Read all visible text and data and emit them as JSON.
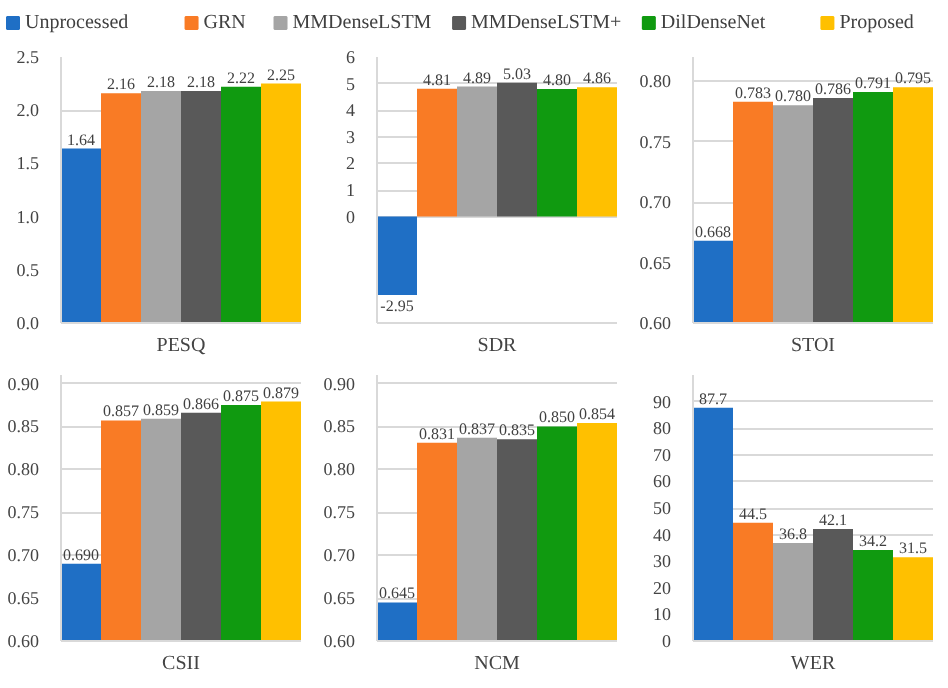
{
  "chart_data": [
    {
      "type": "bar",
      "stacked": true,
      "legend": "top",
      "grid": "y",
      "xlabel": "PESQ",
      "categories": [
        null,
        null,
        null,
        null,
        null,
        null
      ],
      "ylim": [
        0,
        2.5
      ],
      "yticks": [
        {
          "value": 0,
          "label": "0.0"
        },
        {
          "value": 0.5,
          "label": "0.5"
        },
        {
          "value": 1,
          "label": "1.0"
        },
        {
          "value": 1.5,
          "label": "1.5"
        },
        {
          "value": 2,
          "label": "2.0"
        },
        {
          "value": 2.5,
          "label": "2.5"
        }
      ],
      "series": [
        {
          "name": "Unprocessed",
          "color": "#1f6fc5",
          "values": [
            1.64,
            null,
            null,
            null,
            null,
            null
          ],
          "value_labels": [
            "1.64",
            null,
            null,
            null,
            null,
            null
          ]
        },
        {
          "name": "GRN",
          "color": "#f97b25",
          "values": [
            null,
            2.16,
            null,
            null,
            null,
            null
          ],
          "value_labels": [
            null,
            "2.16",
            null,
            null,
            null,
            null
          ]
        },
        {
          "name": "MMDenseLSTM",
          "color": "#a5a5a5",
          "values": [
            null,
            null,
            2.18,
            null,
            null,
            null
          ],
          "value_labels": [
            null,
            null,
            "2.18",
            null,
            null,
            null
          ]
        },
        {
          "name": "MMDenseLSTM+",
          "color": "#595959",
          "values": [
            null,
            null,
            null,
            2.18,
            null,
            null
          ],
          "value_labels": [
            null,
            null,
            null,
            "2.18",
            null,
            null
          ]
        },
        {
          "name": "DilDenseNet",
          "color": "#109a10",
          "values": [
            null,
            null,
            null,
            null,
            2.22,
            null
          ],
          "value_labels": [
            null,
            null,
            null,
            null,
            "2.22",
            null
          ]
        },
        {
          "name": "Proposed",
          "color": "#ffc000",
          "values": [
            null,
            null,
            null,
            null,
            null,
            2.25
          ],
          "value_labels": [
            null,
            null,
            null,
            null,
            null,
            "2.25"
          ]
        }
      ]
    },
    {
      "type": "bar",
      "stacked": true,
      "grid": "y",
      "xlabel": "SDR",
      "categories": [
        null,
        null,
        null,
        null,
        null,
        null
      ],
      "ylim": [
        -4,
        6
      ],
      "yticks": [
        0,
        1,
        2,
        3,
        4,
        5,
        6
      ],
      "series": [
        {
          "color": "#1f6fc5",
          "values": [
            -2.95,
            null,
            null,
            null,
            null,
            null
          ],
          "value_labels": [
            "-2.95",
            null,
            null,
            null,
            null,
            null
          ]
        },
        {
          "color": "#f97b25",
          "values": [
            null,
            4.81,
            null,
            null,
            null,
            null
          ],
          "value_labels": [
            null,
            "4.81",
            null,
            null,
            null,
            null
          ]
        },
        {
          "color": "#a5a5a5",
          "values": [
            null,
            null,
            4.89,
            null,
            null,
            null
          ],
          "value_labels": [
            null,
            null,
            "4.89",
            null,
            null,
            null
          ]
        },
        {
          "color": "#595959",
          "values": [
            null,
            null,
            null,
            5.03,
            null,
            null
          ],
          "value_labels": [
            null,
            null,
            null,
            "5.03",
            null,
            null
          ]
        },
        {
          "color": "#109a10",
          "values": [
            null,
            null,
            null,
            null,
            4.8,
            null
          ],
          "value_labels": [
            null,
            null,
            null,
            null,
            "4.80",
            null
          ]
        },
        {
          "color": "#ffc000",
          "values": [
            null,
            null,
            null,
            null,
            null,
            4.86
          ],
          "value_labels": [
            null,
            null,
            null,
            null,
            null,
            "4.86"
          ]
        }
      ]
    },
    {
      "type": "bar",
      "stacked": true,
      "grid": "y",
      "xlabel": "STOI",
      "categories": [
        null,
        null,
        null,
        null,
        null,
        null
      ],
      "ylim": [
        0.6,
        0.82
      ],
      "yticks": [
        {
          "value": 0.6,
          "label": "0.60"
        },
        {
          "value": 0.65,
          "label": "0.65"
        },
        {
          "value": 0.7,
          "label": "0.70"
        },
        {
          "value": 0.75,
          "label": "0.75"
        },
        {
          "value": 0.8,
          "label": "0.80"
        }
      ],
      "series": [
        {
          "color": "#1f6fc5",
          "values": [
            0.668,
            null,
            null,
            null,
            null,
            null
          ],
          "value_labels": [
            "0.668",
            null,
            null,
            null,
            null,
            null
          ]
        },
        {
          "color": "#f97b25",
          "values": [
            null,
            0.783,
            null,
            null,
            null,
            null
          ],
          "value_labels": [
            null,
            "0.783",
            null,
            null,
            null,
            null
          ]
        },
        {
          "color": "#a5a5a5",
          "values": [
            null,
            null,
            0.78,
            null,
            null,
            null
          ],
          "value_labels": [
            null,
            null,
            "0.780",
            null,
            null,
            null
          ]
        },
        {
          "color": "#595959",
          "values": [
            null,
            null,
            null,
            0.786,
            null,
            null
          ],
          "value_labels": [
            null,
            null,
            null,
            "0.786",
            null,
            null
          ]
        },
        {
          "color": "#109a10",
          "values": [
            null,
            null,
            null,
            null,
            0.791,
            null
          ],
          "value_labels": [
            null,
            null,
            null,
            null,
            "0.791",
            null
          ]
        },
        {
          "color": "#ffc000",
          "values": [
            null,
            null,
            null,
            null,
            null,
            0.795
          ],
          "value_labels": [
            null,
            null,
            null,
            null,
            null,
            "0.795"
          ]
        }
      ]
    },
    {
      "type": "bar",
      "stacked": true,
      "grid": "y",
      "xlabel": "CSII",
      "categories": [
        null,
        null,
        null,
        null,
        null,
        null
      ],
      "ylim": [
        0.6,
        0.91
      ],
      "yticks": [
        {
          "value": 0.6,
          "label": "0.60"
        },
        {
          "value": 0.65,
          "label": "0.65"
        },
        {
          "value": 0.7,
          "label": "0.70"
        },
        {
          "value": 0.75,
          "label": "0.75"
        },
        {
          "value": 0.8,
          "label": "0.80"
        },
        {
          "value": 0.85,
          "label": "0.85"
        },
        {
          "value": 0.9,
          "label": "0.90"
        }
      ],
      "series": [
        {
          "color": "#1f6fc5",
          "values": [
            0.69,
            null,
            null,
            null,
            null,
            null
          ],
          "value_labels": [
            "0.690",
            null,
            null,
            null,
            null,
            null
          ]
        },
        {
          "color": "#f97b25",
          "values": [
            null,
            0.857,
            null,
            null,
            null,
            null
          ],
          "value_labels": [
            null,
            "0.857",
            null,
            null,
            null,
            null
          ]
        },
        {
          "color": "#a5a5a5",
          "values": [
            null,
            null,
            0.859,
            null,
            null,
            null
          ],
          "value_labels": [
            null,
            null,
            "0.859",
            null,
            null,
            null
          ]
        },
        {
          "color": "#595959",
          "values": [
            null,
            null,
            null,
            0.866,
            null,
            null
          ],
          "value_labels": [
            null,
            null,
            null,
            "0.866",
            null,
            null
          ]
        },
        {
          "color": "#109a10",
          "values": [
            null,
            null,
            null,
            null,
            0.875,
            null
          ],
          "value_labels": [
            null,
            null,
            null,
            null,
            "0.875",
            null
          ]
        },
        {
          "color": "#ffc000",
          "values": [
            null,
            null,
            null,
            null,
            null,
            0.879
          ],
          "value_labels": [
            null,
            null,
            null,
            null,
            null,
            "0.879"
          ]
        }
      ]
    },
    {
      "type": "bar",
      "stacked": true,
      "grid": "y",
      "xlabel": "NCM",
      "categories": [
        null,
        null,
        null,
        null,
        null,
        null
      ],
      "ylim": [
        0.6,
        0.91
      ],
      "yticks": [
        {
          "value": 0.6,
          "label": "0.60"
        },
        {
          "value": 0.65,
          "label": "0.65"
        },
        {
          "value": 0.7,
          "label": "0.70"
        },
        {
          "value": 0.75,
          "label": "0.75"
        },
        {
          "value": 0.8,
          "label": "0.80"
        },
        {
          "value": 0.85,
          "label": "0.85"
        },
        {
          "value": 0.9,
          "label": "0.90"
        }
      ],
      "series": [
        {
          "color": "#1f6fc5",
          "values": [
            0.645,
            null,
            null,
            null,
            null,
            null
          ],
          "value_labels": [
            "0.645",
            null,
            null,
            null,
            null,
            null
          ]
        },
        {
          "color": "#f97b25",
          "values": [
            null,
            0.831,
            null,
            null,
            null,
            null
          ],
          "value_labels": [
            null,
            "0.831",
            null,
            null,
            null,
            null
          ]
        },
        {
          "color": "#a5a5a5",
          "values": [
            null,
            null,
            0.837,
            null,
            null,
            null
          ],
          "value_labels": [
            null,
            null,
            "0.837",
            null,
            null,
            null
          ]
        },
        {
          "color": "#595959",
          "values": [
            null,
            null,
            null,
            0.835,
            null,
            null
          ],
          "value_labels": [
            null,
            null,
            null,
            "0.835",
            null,
            null
          ]
        },
        {
          "color": "#109a10",
          "values": [
            null,
            null,
            null,
            null,
            0.85,
            null
          ],
          "value_labels": [
            null,
            null,
            null,
            null,
            "0.850",
            null
          ]
        },
        {
          "color": "#ffc000",
          "values": [
            null,
            null,
            null,
            null,
            null,
            0.854
          ],
          "value_labels": [
            null,
            null,
            null,
            null,
            null,
            "0.854"
          ]
        }
      ]
    },
    {
      "type": "bar",
      "stacked": true,
      "grid": "y",
      "xlabel": "WER",
      "categories": [
        null,
        null,
        null,
        null,
        null,
        null
      ],
      "ylim": [
        0,
        100
      ],
      "yticks": [
        0,
        10,
        20,
        30,
        40,
        50,
        60,
        70,
        80,
        90
      ],
      "series": [
        {
          "color": "#1f6fc5",
          "values": [
            87.7,
            null,
            null,
            null,
            null,
            null
          ],
          "value_labels": [
            "87.7",
            null,
            null,
            null,
            null,
            null
          ]
        },
        {
          "color": "#f97b25",
          "values": [
            null,
            44.5,
            null,
            null,
            null,
            null
          ],
          "value_labels": [
            null,
            "44.5",
            null,
            null,
            null,
            null
          ]
        },
        {
          "color": "#a5a5a5",
          "values": [
            null,
            null,
            36.8,
            null,
            null,
            null
          ],
          "value_labels": [
            null,
            null,
            "36.8",
            null,
            null,
            null
          ]
        },
        {
          "color": "#595959",
          "values": [
            null,
            null,
            null,
            42.1,
            null,
            null
          ],
          "value_labels": [
            null,
            null,
            null,
            "42.1",
            null,
            null
          ]
        },
        {
          "color": "#109a10",
          "values": [
            null,
            null,
            null,
            null,
            34.2,
            null
          ],
          "value_labels": [
            null,
            null,
            null,
            null,
            "34.2",
            null
          ]
        },
        {
          "color": "#ffc000",
          "values": [
            null,
            null,
            null,
            null,
            null,
            31.5
          ],
          "value_labels": [
            null,
            null,
            null,
            null,
            null,
            "31.5"
          ]
        }
      ]
    }
  ]
}
